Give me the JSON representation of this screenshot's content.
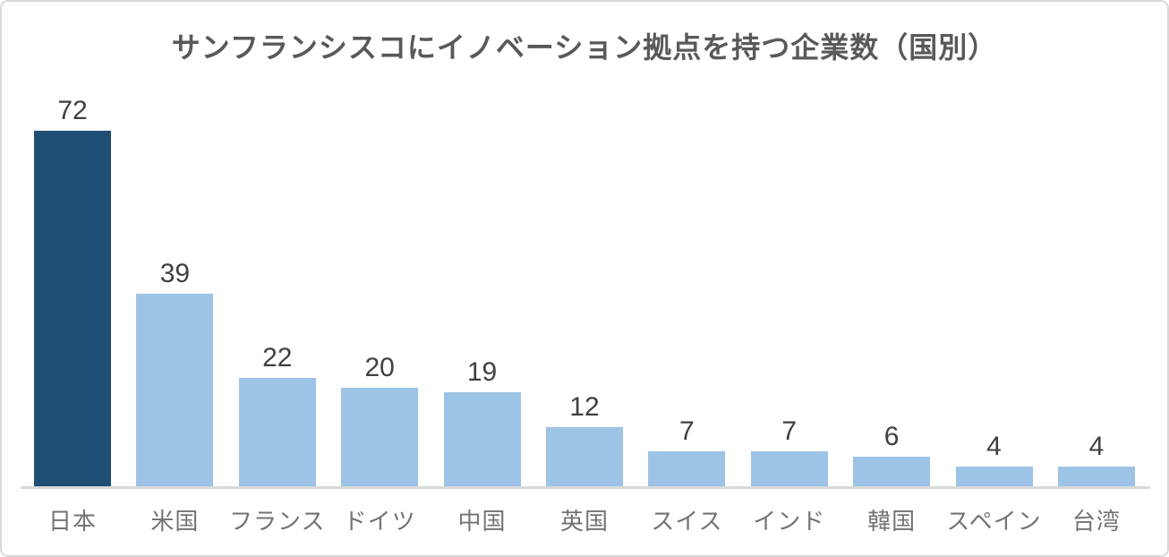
{
  "chart_data": {
    "type": "bar",
    "title": "サンフランシスコにイノベーション拠点を持つ企業数（国別）",
    "categories": [
      "日本",
      "米国",
      "フランス",
      "ドイツ",
      "中国",
      "英国",
      "スイス",
      "インド",
      "韓国",
      "スペイン",
      "台湾"
    ],
    "values": [
      72,
      39,
      22,
      20,
      19,
      12,
      7,
      7,
      6,
      4,
      4
    ],
    "data_labels": true,
    "legend": "none",
    "gridlines": false,
    "y_axis": "hidden",
    "ylim": [
      0,
      72
    ],
    "xlabel": "",
    "ylabel": "",
    "bar_color_default": "#9DC3E6",
    "bar_color_highlight": "#1F4E74",
    "highlight_index": 0,
    "axis_line_color": "#D9D9D9",
    "title_color": "#595959",
    "data_label_color": "#404040",
    "category_label_color": "#737373"
  }
}
